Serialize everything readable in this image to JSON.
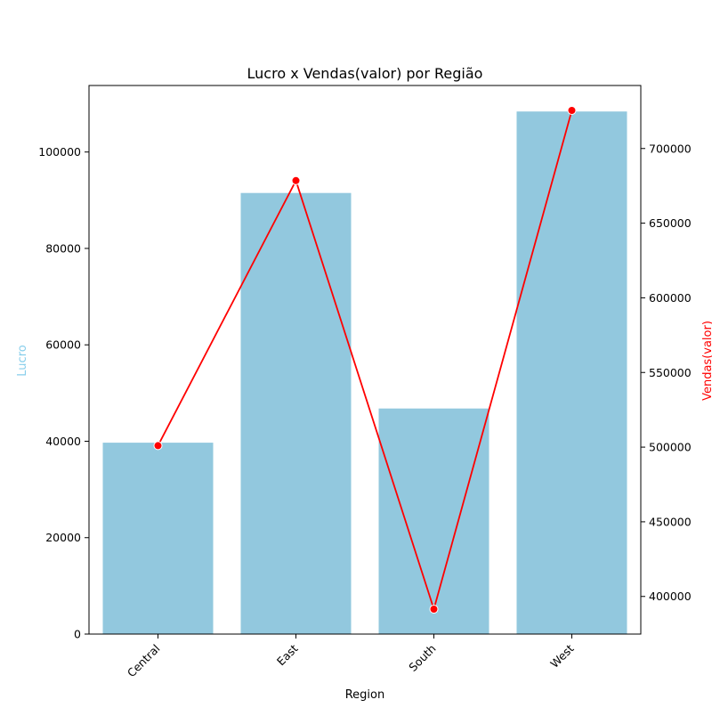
{
  "chart_data": {
    "type": "bar",
    "title": "Lucro x Vendas(valor) por Região",
    "xlabel": "Region",
    "categories": [
      "Central",
      "East",
      "South",
      "West"
    ],
    "series": [
      {
        "type": "bar",
        "axis": "left",
        "values": [
          39700,
          91500,
          46800,
          108400
        ],
        "color": "#92c8de"
      },
      {
        "type": "line",
        "axis": "right",
        "values": [
          501000,
          678500,
          391500,
          725500
        ],
        "color": "#ff0000"
      }
    ],
    "y_left": {
      "label": "Lucro",
      "label_color": "#87ceeb",
      "ticks": [
        "0",
        "20000",
        "40000",
        "60000",
        "80000",
        "100000"
      ],
      "ylim": [
        0,
        113800
      ]
    },
    "y_right": {
      "label": "Vendas(valor)",
      "label_color": "#ff0000",
      "ticks": [
        "400000",
        "450000",
        "500000",
        "550000",
        "600000",
        "650000",
        "700000"
      ],
      "ylim": [
        374800,
        742200
      ]
    },
    "x_tick_rotation": 45,
    "grid": false,
    "legend": "none"
  }
}
